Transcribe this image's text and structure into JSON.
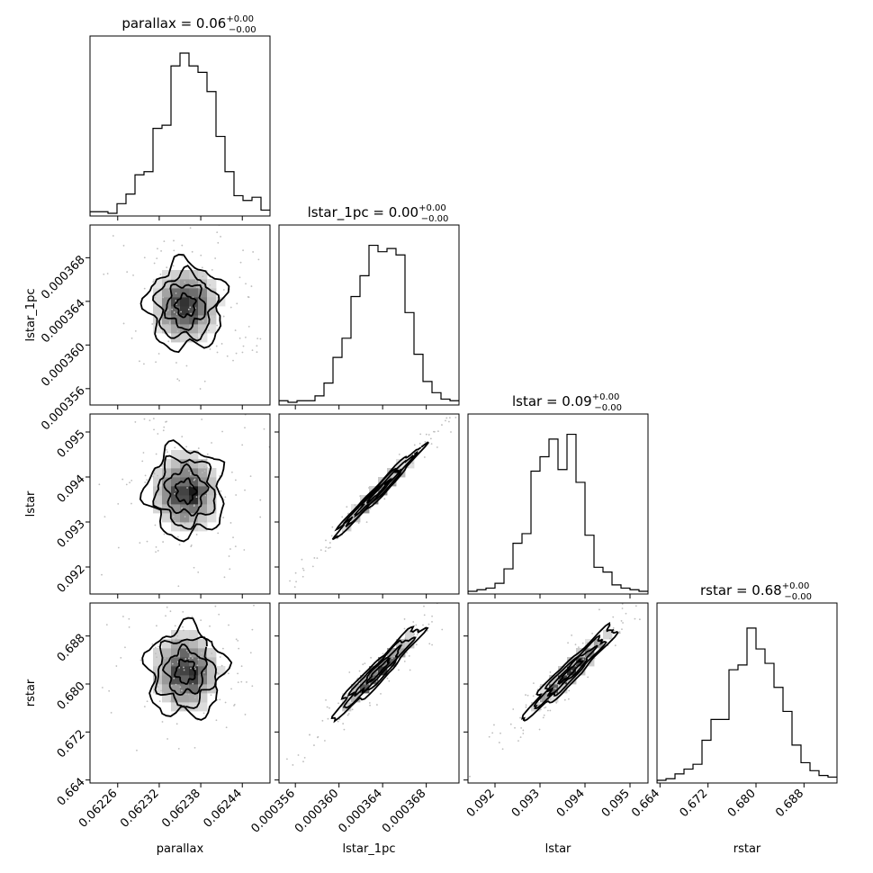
{
  "chart_data": {
    "type": "corner",
    "parameters": [
      {
        "name": "parallax",
        "axis_label": "parallax",
        "title": "parallax = 0.06",
        "title_sup": "+0.00",
        "title_sub": "−0.00",
        "range": [
          0.06222,
          0.06248
        ],
        "ticks": [
          0.06226,
          0.06232,
          0.06238,
          0.06244
        ],
        "tick_labels": [
          "0.06226",
          "0.06232",
          "0.06238",
          "0.06244"
        ],
        "center": 0.062358,
        "sigma": 2.5e-05,
        "hist": [
          0.01,
          0.01,
          0.0,
          0.06,
          0.12,
          0.24,
          0.26,
          0.53,
          0.55,
          0.92,
          1.0,
          0.92,
          0.88,
          0.76,
          0.48,
          0.26,
          0.11,
          0.08,
          0.1,
          0.02
        ]
      },
      {
        "name": "lstar_1pc",
        "axis_label": "lstar_1pc",
        "title": "lstar_1pc = 0.00",
        "title_sup": "+0.00",
        "title_sub": "−0.00",
        "range": [
          0.0003545,
          0.000371
        ],
        "ticks": [
          0.000356,
          0.00036,
          0.000364,
          0.000368
        ],
        "tick_labels": [
          "0.000356",
          "0.000360",
          "0.000364",
          "0.000368"
        ],
        "center": 0.0003636,
        "sigma": 1.8e-06,
        "hist": [
          0.01,
          0.0,
          0.01,
          0.01,
          0.04,
          0.12,
          0.28,
          0.4,
          0.66,
          0.79,
          0.98,
          0.94,
          0.96,
          0.92,
          0.56,
          0.3,
          0.13,
          0.06,
          0.02,
          0.01
        ]
      },
      {
        "name": "lstar",
        "axis_label": "lstar",
        "title": "lstar = 0.09",
        "title_sup": "+0.00",
        "title_sub": "−0.00",
        "range": [
          0.0914,
          0.0954
        ],
        "ticks": [
          0.092,
          0.093,
          0.094,
          0.095
        ],
        "tick_labels": [
          "0.092",
          "0.093",
          "0.094",
          "0.095"
        ],
        "center": 0.09368,
        "sigma": 0.00045,
        "hist": [
          0.0,
          0.01,
          0.02,
          0.05,
          0.14,
          0.3,
          0.36,
          0.75,
          0.84,
          0.95,
          0.76,
          0.98,
          0.68,
          0.35,
          0.15,
          0.12,
          0.04,
          0.02,
          0.01,
          0.0
        ]
      },
      {
        "name": "rstar",
        "axis_label": "rstar",
        "title": "rstar = 0.68",
        "title_sup": "+0.00",
        "title_sub": "−0.00",
        "range": [
          0.6635,
          0.6935
        ],
        "ticks": [
          0.664,
          0.672,
          0.68,
          0.688
        ],
        "tick_labels": [
          "0.664",
          "0.672",
          "0.680",
          "0.688"
        ],
        "center": 0.6821,
        "sigma": 0.0034,
        "hist": [
          0.0,
          0.01,
          0.04,
          0.07,
          0.1,
          0.25,
          0.38,
          0.38,
          0.69,
          0.72,
          0.95,
          0.82,
          0.73,
          0.58,
          0.43,
          0.22,
          0.11,
          0.06,
          0.03,
          0.02
        ]
      }
    ],
    "correlations": {
      "1-0": 0.02,
      "2-0": -0.02,
      "2-1": 0.985,
      "3-0": 0.01,
      "3-1": 0.96,
      "3-2": 0.96
    },
    "contour_levels_sigma": [
      0.5,
      1.0,
      1.5,
      2.0
    ]
  }
}
